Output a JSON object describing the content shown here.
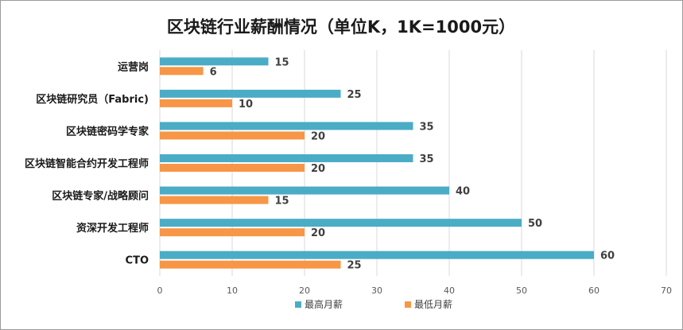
{
  "chart_data": {
    "type": "bar",
    "orientation": "horizontal",
    "title": "区块链行业薪酬情况（单位K，1K=1000元）",
    "categories": [
      "运营岗",
      "区块链研究员（Fabric)",
      "区块链密码学专家",
      "区块链智能合约开发工程师",
      "区块链专家/战略顾问",
      "资深开发工程师",
      "CTO"
    ],
    "series": [
      {
        "name": "最高月薪",
        "values": [
          15,
          25,
          35,
          35,
          40,
          50,
          60
        ],
        "color": "#4bacc6"
      },
      {
        "name": "最低月薪",
        "values": [
          6,
          10,
          20,
          20,
          15,
          20,
          25
        ],
        "color": "#f79646"
      }
    ],
    "xlim": [
      0,
      70
    ],
    "xticks": [
      0,
      10,
      20,
      30,
      40,
      50,
      60,
      70
    ],
    "grid": true,
    "legend_position": "bottom"
  }
}
